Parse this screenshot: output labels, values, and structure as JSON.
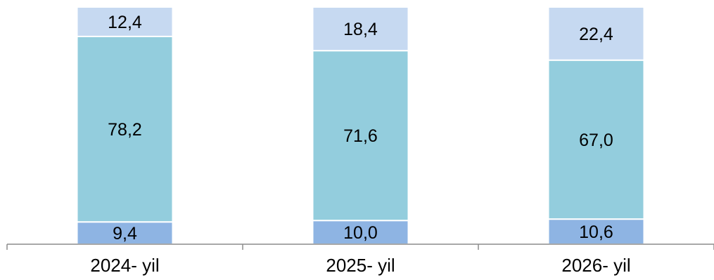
{
  "chart_data": {
    "type": "bar",
    "stacked": true,
    "normalized_percent": true,
    "categories": [
      "2024- yil",
      "2025- yil",
      "2026- yil"
    ],
    "series": [
      {
        "values": [
          9.4,
          10.0,
          10.6
        ],
        "labels": [
          "9,4",
          "10,0",
          "10,6"
        ],
        "color": "#8eb4e3"
      },
      {
        "values": [
          78.2,
          71.6,
          67.0
        ],
        "labels": [
          "78,2",
          "71,6",
          "67,0"
        ],
        "color": "#93cddd"
      },
      {
        "values": [
          12.4,
          18.4,
          22.4
        ],
        "labels": [
          "12,4",
          "18,4",
          "22,4"
        ],
        "color": "#c6d9f1"
      }
    ],
    "ylim": [
      0,
      100
    ],
    "grid": false,
    "legend": "none",
    "title": "",
    "xlabel": "",
    "ylabel": ""
  }
}
